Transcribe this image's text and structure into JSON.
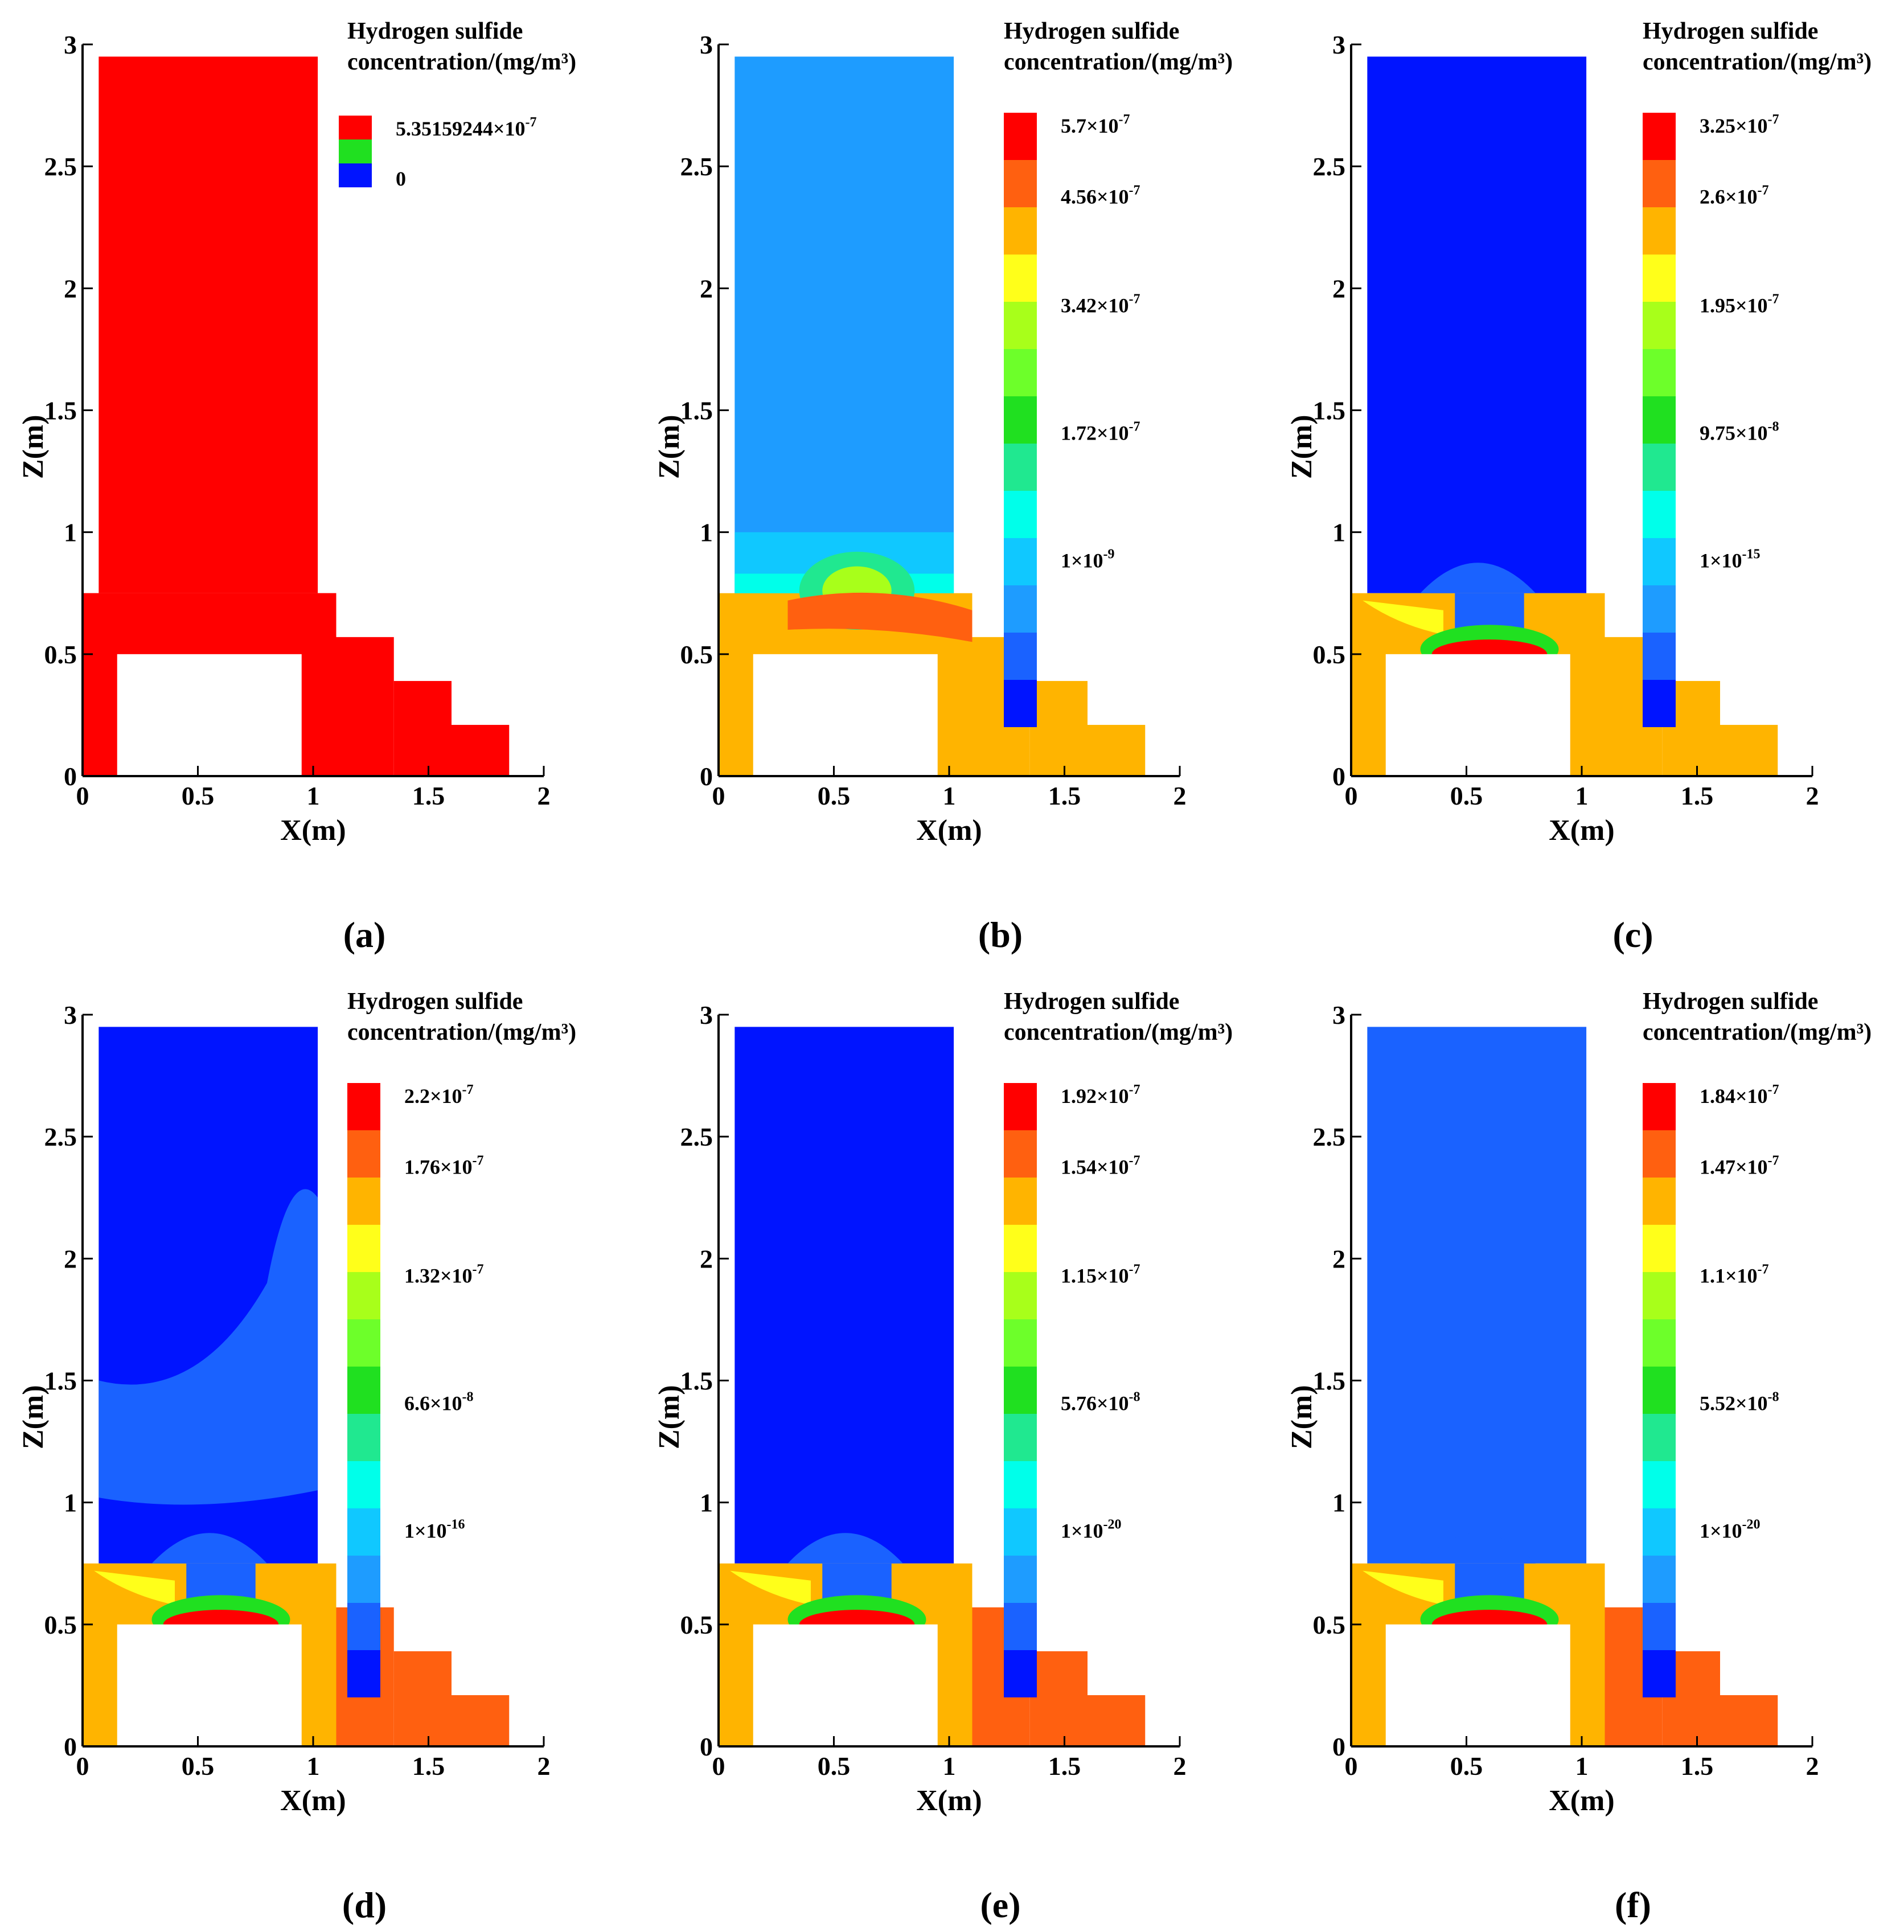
{
  "colors": {
    "red": "#ff0000",
    "orange_red": "#ff6010",
    "orange": "#ffb400",
    "yellow": "#ffff1a",
    "yellow_green": "#a8ff1a",
    "light_green": "#6dff2a",
    "green": "#20e020",
    "sea_green": "#20e890",
    "cyan": "#00ffea",
    "sky": "#10c8ff",
    "light_blue": "#1e9cff",
    "medium_blue": "#1a62ff",
    "blue": "#0014ff",
    "background": "#ffffff"
  },
  "chart_data": [
    {
      "type": "heatmap",
      "panel_label": "(a)",
      "title_line1": "Hydrogen sulfide",
      "title_line2": "concentration/(mg/m³)",
      "xlabel": "X(m)",
      "ylabel": "Z(m)",
      "xlim": [
        0,
        2
      ],
      "ylim": [
        0,
        3
      ],
      "xticks": [
        "0",
        "0.5",
        "1",
        "1.5",
        "2"
      ],
      "yticks": [
        "0",
        "0.5",
        "1",
        "1.5",
        "2",
        "2.5",
        "3"
      ],
      "legend_levels": [
        {
          "mantissa": "5.35159244×10",
          "exp": "-7"
        },
        {
          "mantissa": "0",
          "exp": ""
        }
      ],
      "field_colors": {
        "upper": "#ff0000",
        "lower": "#ff0000",
        "steps": "#ff0000"
      }
    },
    {
      "type": "heatmap",
      "panel_label": "(b)",
      "title_line1": "Hydrogen sulfide",
      "title_line2": "concentration/(mg/m³)",
      "xlabel": "X(m)",
      "ylabel": "Z(m)",
      "xlim": [
        0,
        2
      ],
      "ylim": [
        0,
        3
      ],
      "xticks": [
        "0",
        "0.5",
        "1",
        "1.5",
        "2"
      ],
      "yticks": [
        "0",
        "0.5",
        "1",
        "1.5",
        "2",
        "2.5",
        "3"
      ],
      "legend_levels": [
        {
          "mantissa": "5.7×10",
          "exp": "-7"
        },
        {
          "mantissa": "4.56×10",
          "exp": "-7"
        },
        {
          "mantissa": "3.42×10",
          "exp": "-7"
        },
        {
          "mantissa": "1.72×10",
          "exp": "-7"
        },
        {
          "mantissa": "1×10",
          "exp": "-9"
        }
      ],
      "field_colors": {
        "upper": "#1e9cff",
        "lower": "#ffb400",
        "steps": "#ffb400"
      }
    },
    {
      "type": "heatmap",
      "panel_label": "(c)",
      "title_line1": "Hydrogen sulfide",
      "title_line2": "concentration/(mg/m³)",
      "xlabel": "X(m)",
      "ylabel": "Z(m)",
      "xlim": [
        0,
        2
      ],
      "ylim": [
        0,
        3
      ],
      "xticks": [
        "0",
        "0.5",
        "1",
        "1.5",
        "2"
      ],
      "yticks": [
        "0",
        "0.5",
        "1",
        "1.5",
        "2",
        "2.5",
        "3"
      ],
      "legend_levels": [
        {
          "mantissa": "3.25×10",
          "exp": "-7"
        },
        {
          "mantissa": "2.6×10",
          "exp": "-7"
        },
        {
          "mantissa": "1.95×10",
          "exp": "-7"
        },
        {
          "mantissa": "9.75×10",
          "exp": "-8"
        },
        {
          "mantissa": "1×10",
          "exp": "-15"
        }
      ],
      "field_colors": {
        "upper": "#0014ff",
        "lower": "#ffb400",
        "steps": "#ffb400"
      }
    },
    {
      "type": "heatmap",
      "panel_label": "(d)",
      "title_line1": "Hydrogen sulfide",
      "title_line2": "concentration/(mg/m³)",
      "xlabel": "X(m)",
      "ylabel": "Z(m)",
      "xlim": [
        0,
        2
      ],
      "ylim": [
        0,
        3
      ],
      "xticks": [
        "0",
        "0.5",
        "1",
        "1.5",
        "2"
      ],
      "yticks": [
        "0",
        "0.5",
        "1",
        "1.5",
        "2",
        "2.5",
        "3"
      ],
      "legend_levels": [
        {
          "mantissa": "2.2×10",
          "exp": "-7"
        },
        {
          "mantissa": "1.76×10",
          "exp": "-7"
        },
        {
          "mantissa": "1.32×10",
          "exp": "-7"
        },
        {
          "mantissa": "6.6×10",
          "exp": "-8"
        },
        {
          "mantissa": "1×10",
          "exp": "-16"
        }
      ],
      "field_colors": {
        "upper": "#0014ff",
        "lower": "#ffb400",
        "steps": "#ff6010"
      }
    },
    {
      "type": "heatmap",
      "panel_label": "(e)",
      "title_line1": "Hydrogen sulfide",
      "title_line2": "concentration/(mg/m³)",
      "xlabel": "X(m)",
      "ylabel": "Z(m)",
      "xlim": [
        0,
        2
      ],
      "ylim": [
        0,
        3
      ],
      "xticks": [
        "0",
        "0.5",
        "1",
        "1.5",
        "2"
      ],
      "yticks": [
        "0",
        "0.5",
        "1",
        "1.5",
        "2",
        "2.5",
        "3"
      ],
      "legend_levels": [
        {
          "mantissa": "1.92×10",
          "exp": "-7"
        },
        {
          "mantissa": "1.54×10",
          "exp": "-7"
        },
        {
          "mantissa": "1.15×10",
          "exp": "-7"
        },
        {
          "mantissa": "5.76×10",
          "exp": "-8"
        },
        {
          "mantissa": "1×10",
          "exp": "-20"
        }
      ],
      "field_colors": {
        "upper": "#0014ff",
        "lower": "#ffb400",
        "steps": "#ff6010"
      }
    },
    {
      "type": "heatmap",
      "panel_label": "(f)",
      "title_line1": "Hydrogen sulfide",
      "title_line2": "concentration/(mg/m³)",
      "xlabel": "X(m)",
      "ylabel": "Z(m)",
      "xlim": [
        0,
        2
      ],
      "ylim": [
        0,
        3
      ],
      "xticks": [
        "0",
        "0.5",
        "1",
        "1.5",
        "2"
      ],
      "yticks": [
        "0",
        "0.5",
        "1",
        "1.5",
        "2",
        "2.5",
        "3"
      ],
      "legend_levels": [
        {
          "mantissa": "1.84×10",
          "exp": "-7"
        },
        {
          "mantissa": "1.47×10",
          "exp": "-7"
        },
        {
          "mantissa": "1.1×10",
          "exp": "-7"
        },
        {
          "mantissa": "5.52×10",
          "exp": "-8"
        },
        {
          "mantissa": "1×10",
          "exp": "-20"
        }
      ],
      "field_colors": {
        "upper": "#1a62ff",
        "lower": "#ffb400",
        "steps": "#ff6010"
      }
    }
  ]
}
